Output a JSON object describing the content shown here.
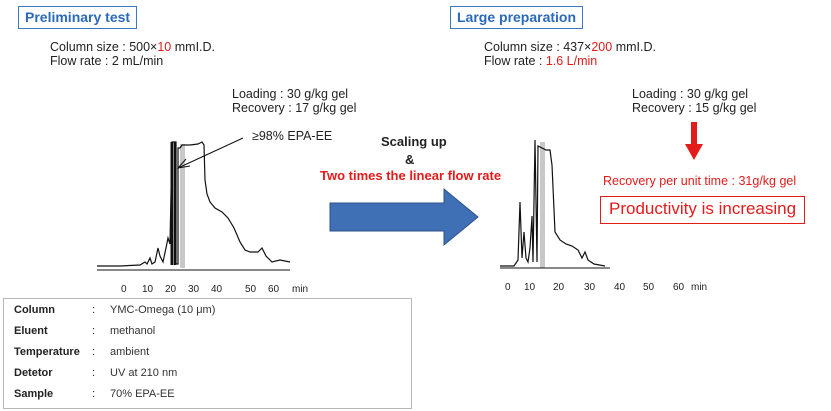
{
  "left": {
    "title": "Preliminary test",
    "column_size_prefix": "Column size : 500×",
    "column_size_highlight": "10",
    "column_size_suffix": " mmI.D.",
    "flow_rate_label": "Flow rate : ",
    "flow_rate_value": "2 mL/min",
    "loading": "Loading   : 30 g/kg gel",
    "recovery": "Recovery : 17 g/kg gel",
    "annotation": "≥98% EPA-EE",
    "ticks": [
      "0",
      "10",
      "20",
      "30",
      "40",
      "50",
      "60"
    ],
    "unit": "min"
  },
  "middle": {
    "scaling_up": "Scaling up",
    "ampersand": "&",
    "linear_flow": "Two times the linear flow rate"
  },
  "right": {
    "title": "Large preparation",
    "column_size_prefix": "Column size : 437×",
    "column_size_highlight": "200",
    "column_size_suffix": " mmI.D.",
    "flow_rate_label": "Flow rate : ",
    "flow_rate_value": "1.6 L/min",
    "loading": "Loading   : 30 g/kg gel",
    "recovery": "Recovery : 15 g/kg gel",
    "recovery_per_unit": "Recovery per unit time : 31g/kg gel",
    "productivity": "Productivity is increasing",
    "ticks": [
      "0",
      "10",
      "20",
      "30",
      "40",
      "50",
      "60"
    ],
    "unit": "min"
  },
  "conditions": [
    {
      "key": "Column",
      "value": "YMC-Omega (10 μm)"
    },
    {
      "key": "Eluent",
      "value": "methanol"
    },
    {
      "key": "Temperature",
      "value": "ambient"
    },
    {
      "key": "Detetor",
      "value": "UV at 210 nm"
    },
    {
      "key": "Sample",
      "value": "70% EPA-EE"
    }
  ],
  "colon": ":",
  "colors": {
    "accent_blue": "#3a78c2",
    "red": "#e41b1b",
    "arrow_blue": "#3f6fb5"
  }
}
